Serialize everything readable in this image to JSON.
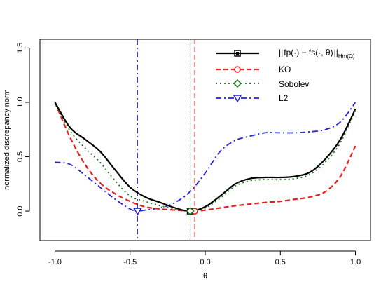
{
  "chart_data": {
    "type": "line",
    "xlabel": "θ",
    "ylabel": "normalized discrepancy norm",
    "xlim": [
      -1.1,
      1.1
    ],
    "ylim": [
      -0.27,
      1.58
    ],
    "xticks": [
      "-1.0",
      "-0.5",
      "0.0",
      "0.5",
      "1.0"
    ],
    "xtick_values": [
      -1.0,
      -0.5,
      0.0,
      0.5,
      1.0
    ],
    "yticks": [
      "0.0",
      "0.5",
      "1.0",
      "1.5"
    ],
    "ytick_values": [
      0.0,
      0.5,
      1.0,
      1.5
    ],
    "legend_position": "top-right",
    "vertical_lines": [
      {
        "x": -0.1,
        "color": "#000000",
        "style": "solid"
      },
      {
        "x": -0.1,
        "color": "#1b7a1b",
        "style": "dotted"
      },
      {
        "x": -0.45,
        "color": "#3333cc",
        "style": "dash-dot"
      },
      {
        "x": -0.07,
        "color": "#e82020",
        "style": "dashed"
      }
    ],
    "series": [
      {
        "name": "||fp(·) − fs(·, θ)||Hm(Ω)",
        "color": "#000000",
        "style": "solid",
        "marker": "square",
        "minimum": {
          "x": -0.1,
          "y": 0.0
        },
        "x": [
          -1.0,
          -0.9,
          -0.8,
          -0.7,
          -0.6,
          -0.5,
          -0.4,
          -0.3,
          -0.2,
          -0.1,
          0.0,
          0.1,
          0.2,
          0.3,
          0.4,
          0.5,
          0.6,
          0.7,
          0.8,
          0.9,
          1.0
        ],
        "y": [
          1.0,
          0.77,
          0.66,
          0.55,
          0.38,
          0.22,
          0.13,
          0.08,
          0.03,
          0.0,
          0.04,
          0.14,
          0.25,
          0.3,
          0.31,
          0.31,
          0.32,
          0.36,
          0.48,
          0.66,
          0.94
        ]
      },
      {
        "name": "KO",
        "color": "#e82020",
        "style": "dashed",
        "marker": "circle",
        "minimum": {
          "x": -0.07,
          "y": 0.0
        },
        "x": [
          -1.0,
          -0.9,
          -0.8,
          -0.7,
          -0.6,
          -0.5,
          -0.4,
          -0.3,
          -0.2,
          -0.1,
          -0.07,
          0.0,
          0.1,
          0.2,
          0.3,
          0.4,
          0.5,
          0.6,
          0.7,
          0.8,
          0.9,
          1.0
        ],
        "y": [
          1.0,
          0.68,
          0.43,
          0.26,
          0.16,
          0.09,
          0.04,
          0.02,
          0.01,
          0.0,
          0.0,
          0.01,
          0.03,
          0.05,
          0.065,
          0.08,
          0.09,
          0.11,
          0.13,
          0.18,
          0.32,
          0.6
        ]
      },
      {
        "name": "Sobolev",
        "color": "#1b7a1b",
        "style": "dotted",
        "marker": "diamond",
        "minimum": {
          "x": -0.1,
          "y": 0.0
        },
        "x": [
          -1.0,
          -0.9,
          -0.8,
          -0.7,
          -0.6,
          -0.5,
          -0.4,
          -0.3,
          -0.2,
          -0.1,
          0.0,
          0.1,
          0.2,
          0.3,
          0.4,
          0.5,
          0.6,
          0.7,
          0.8,
          0.9,
          1.0
        ],
        "y": [
          1.0,
          0.74,
          0.58,
          0.45,
          0.28,
          0.14,
          0.09,
          0.05,
          0.02,
          0.0,
          0.03,
          0.12,
          0.23,
          0.28,
          0.29,
          0.29,
          0.3,
          0.34,
          0.45,
          0.63,
          0.92
        ]
      },
      {
        "name": "L2",
        "color": "#2222dd",
        "style": "dash-dot",
        "marker": "triangle-down",
        "minimum": {
          "x": -0.45,
          "y": 0.0
        },
        "x": [
          -1.0,
          -0.9,
          -0.8,
          -0.7,
          -0.6,
          -0.5,
          -0.45,
          -0.4,
          -0.3,
          -0.2,
          -0.1,
          0.0,
          0.1,
          0.2,
          0.3,
          0.4,
          0.5,
          0.6,
          0.7,
          0.8,
          0.9,
          1.0
        ],
        "y": [
          0.45,
          0.43,
          0.33,
          0.22,
          0.11,
          0.02,
          0.0,
          0.01,
          0.03,
          0.08,
          0.18,
          0.35,
          0.55,
          0.65,
          0.69,
          0.72,
          0.72,
          0.72,
          0.73,
          0.75,
          0.82,
          1.0
        ]
      }
    ],
    "legend": {
      "norm_left": "||",
      "norm_body": "fp(·) − fs(·, θ)",
      "norm_right": "||",
      "norm_sub": "Hm(Ω)",
      "labels": [
        "",
        "KO",
        "Sobolev",
        "L2"
      ]
    }
  }
}
